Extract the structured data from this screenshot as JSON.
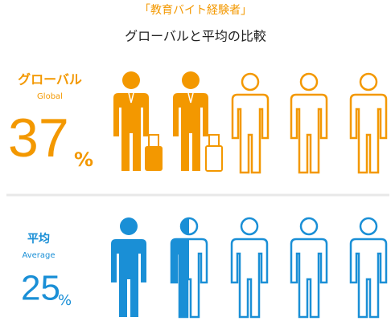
{
  "header": {
    "title": "「教育バイト経験者」",
    "subtitle": "グローバルと平均の比較"
  },
  "groups": [
    {
      "label": "グローバル",
      "sublabel": "Global",
      "value": 37,
      "unit": "%"
    },
    {
      "label": "平均",
      "sublabel": "Average",
      "value": 25,
      "unit": "%"
    }
  ]
}
